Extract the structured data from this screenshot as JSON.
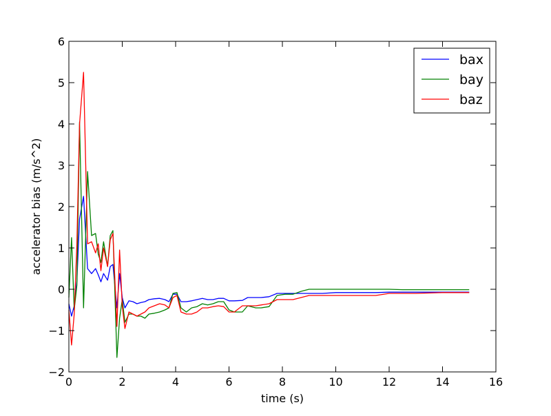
{
  "chart_data": {
    "type": "line",
    "title": "",
    "xlabel": "time (s)",
    "ylabel": "accelerator bias (m/s^2)",
    "xlim": [
      0,
      16
    ],
    "ylim": [
      -2,
      6
    ],
    "xticks": [
      0,
      2,
      4,
      6,
      8,
      10,
      12,
      14,
      16
    ],
    "yticks": [
      -2,
      -1,
      0,
      1,
      2,
      3,
      4,
      5,
      6
    ],
    "xtick_labels": [
      "0",
      "2",
      "4",
      "6",
      "8",
      "10",
      "12",
      "14",
      "16"
    ],
    "ytick_labels": [
      "−2",
      "−1",
      "0",
      "1",
      "2",
      "3",
      "4",
      "5",
      "6"
    ],
    "grid": false,
    "legend": {
      "position": "top-right"
    },
    "series": [
      {
        "name": "bax",
        "color": "#0000ff",
        "x": [
          0,
          0.1,
          0.2,
          0.3,
          0.4,
          0.55,
          0.7,
          0.85,
          1.0,
          1.1,
          1.2,
          1.3,
          1.45,
          1.55,
          1.65,
          1.8,
          1.9,
          2.0,
          2.1,
          2.25,
          2.4,
          2.55,
          2.7,
          2.85,
          3.0,
          3.2,
          3.4,
          3.6,
          3.75,
          3.9,
          4.05,
          4.2,
          4.4,
          4.6,
          4.8,
          5.0,
          5.2,
          5.4,
          5.6,
          5.8,
          6.0,
          6.2,
          6.5,
          6.7,
          7.0,
          7.2,
          7.5,
          7.8,
          8.1,
          8.4,
          8.7,
          9.0,
          9.5,
          10.0,
          11.0,
          11.5,
          12.0,
          12.5,
          13.0,
          14.0,
          15.0
        ],
        "values": [
          -0.35,
          -0.65,
          -0.4,
          0.2,
          1.7,
          2.25,
          0.5,
          0.38,
          0.5,
          0.35,
          0.18,
          0.38,
          0.22,
          0.55,
          0.6,
          -0.45,
          0.38,
          -0.2,
          -0.45,
          -0.28,
          -0.3,
          -0.35,
          -0.32,
          -0.3,
          -0.25,
          -0.23,
          -0.22,
          -0.25,
          -0.3,
          -0.12,
          -0.12,
          -0.3,
          -0.3,
          -0.28,
          -0.25,
          -0.22,
          -0.25,
          -0.25,
          -0.22,
          -0.22,
          -0.28,
          -0.28,
          -0.27,
          -0.2,
          -0.2,
          -0.2,
          -0.18,
          -0.1,
          -0.1,
          -0.1,
          -0.1,
          -0.1,
          -0.1,
          -0.08,
          -0.08,
          -0.08,
          -0.07,
          -0.07,
          -0.07,
          -0.07,
          -0.07
        ]
      },
      {
        "name": "bay",
        "color": "#008000",
        "x": [
          0,
          0.1,
          0.2,
          0.3,
          0.4,
          0.55,
          0.7,
          0.85,
          1.0,
          1.1,
          1.2,
          1.3,
          1.45,
          1.55,
          1.65,
          1.8,
          1.9,
          2.0,
          2.1,
          2.25,
          2.4,
          2.55,
          2.7,
          2.85,
          3.0,
          3.2,
          3.4,
          3.6,
          3.75,
          3.9,
          4.05,
          4.2,
          4.4,
          4.6,
          4.8,
          5.0,
          5.2,
          5.4,
          5.6,
          5.8,
          6.0,
          6.2,
          6.5,
          6.7,
          7.0,
          7.2,
          7.5,
          7.8,
          8.1,
          8.4,
          8.7,
          9.0,
          9.5,
          10.0,
          11.0,
          11.5,
          12.0,
          12.5,
          13.0,
          14.0,
          15.0
        ],
        "values": [
          -0.2,
          1.25,
          -0.5,
          0.1,
          4.05,
          -0.45,
          2.85,
          1.3,
          1.35,
          0.85,
          0.65,
          1.15,
          0.55,
          1.3,
          1.42,
          -1.65,
          -0.7,
          -0.25,
          -0.8,
          -0.6,
          -0.6,
          -0.65,
          -0.65,
          -0.7,
          -0.6,
          -0.58,
          -0.55,
          -0.5,
          -0.45,
          -0.1,
          -0.08,
          -0.45,
          -0.55,
          -0.45,
          -0.42,
          -0.35,
          -0.38,
          -0.35,
          -0.3,
          -0.3,
          -0.5,
          -0.55,
          -0.55,
          -0.4,
          -0.45,
          -0.45,
          -0.42,
          -0.15,
          -0.12,
          -0.12,
          -0.05,
          0.0,
          0.0,
          0.0,
          0.0,
          0.0,
          0.0,
          -0.01,
          -0.01,
          -0.01,
          -0.01
        ]
      },
      {
        "name": "baz",
        "color": "#ff0000",
        "x": [
          0,
          0.1,
          0.2,
          0.3,
          0.4,
          0.55,
          0.7,
          0.85,
          1.0,
          1.1,
          1.2,
          1.3,
          1.45,
          1.55,
          1.65,
          1.8,
          1.9,
          2.0,
          2.1,
          2.25,
          2.4,
          2.55,
          2.7,
          2.85,
          3.0,
          3.2,
          3.4,
          3.6,
          3.75,
          3.9,
          4.05,
          4.2,
          4.4,
          4.6,
          4.8,
          5.0,
          5.2,
          5.4,
          5.6,
          5.8,
          6.0,
          6.2,
          6.5,
          6.7,
          7.0,
          7.2,
          7.5,
          7.8,
          8.1,
          8.4,
          8.7,
          9.0,
          9.5,
          10.0,
          11.0,
          11.5,
          12.0,
          12.5,
          13.0,
          14.0,
          15.0
        ],
        "values": [
          -0.5,
          -1.35,
          -0.6,
          1.1,
          4.0,
          5.25,
          1.1,
          1.15,
          0.88,
          1.1,
          0.45,
          1.0,
          0.55,
          1.2,
          1.35,
          -0.9,
          0.95,
          -0.4,
          -0.95,
          -0.55,
          -0.6,
          -0.65,
          -0.6,
          -0.55,
          -0.45,
          -0.4,
          -0.35,
          -0.38,
          -0.45,
          -0.2,
          -0.15,
          -0.55,
          -0.6,
          -0.6,
          -0.55,
          -0.45,
          -0.45,
          -0.42,
          -0.4,
          -0.42,
          -0.55,
          -0.55,
          -0.4,
          -0.4,
          -0.4,
          -0.38,
          -0.35,
          -0.25,
          -0.25,
          -0.25,
          -0.2,
          -0.15,
          -0.15,
          -0.15,
          -0.15,
          -0.15,
          -0.1,
          -0.1,
          -0.1,
          -0.08,
          -0.08
        ]
      }
    ]
  }
}
